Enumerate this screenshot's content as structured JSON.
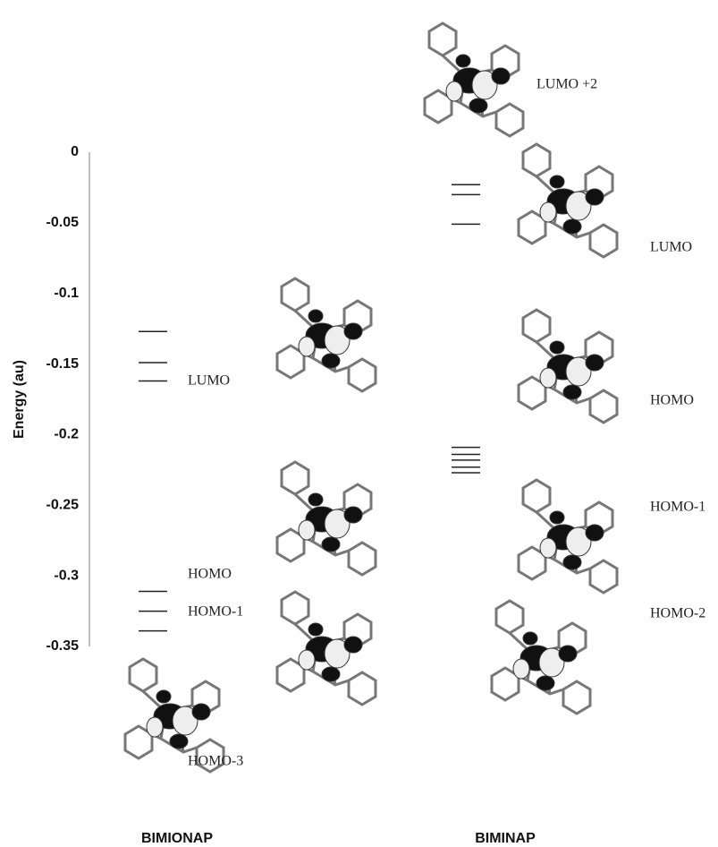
{
  "chart_data": {
    "type": "levels",
    "ylabel": "Energy (au)",
    "ylim": [
      -0.35,
      0
    ],
    "yticks": [
      0,
      -0.05,
      -0.1,
      -0.15,
      -0.2,
      -0.25,
      -0.3,
      -0.35
    ],
    "series": [
      {
        "name": "BIMIONAP",
        "color": "#222222",
        "values": [
          -0.127,
          -0.149,
          -0.162,
          -0.311,
          -0.325,
          -0.339
        ]
      },
      {
        "name": "BIMINAP",
        "color": "#222222",
        "values": [
          -0.023,
          -0.03,
          -0.051,
          -0.209,
          -0.214,
          -0.218,
          -0.223,
          -0.227
        ]
      }
    ],
    "annotations": [
      "LUMO",
      "HOMO",
      "HOMO-1",
      "HOMO-3",
      "LUMO +2",
      "LUMO",
      "HOMO",
      "HOMO-1",
      "HOMO-2"
    ]
  }
}
